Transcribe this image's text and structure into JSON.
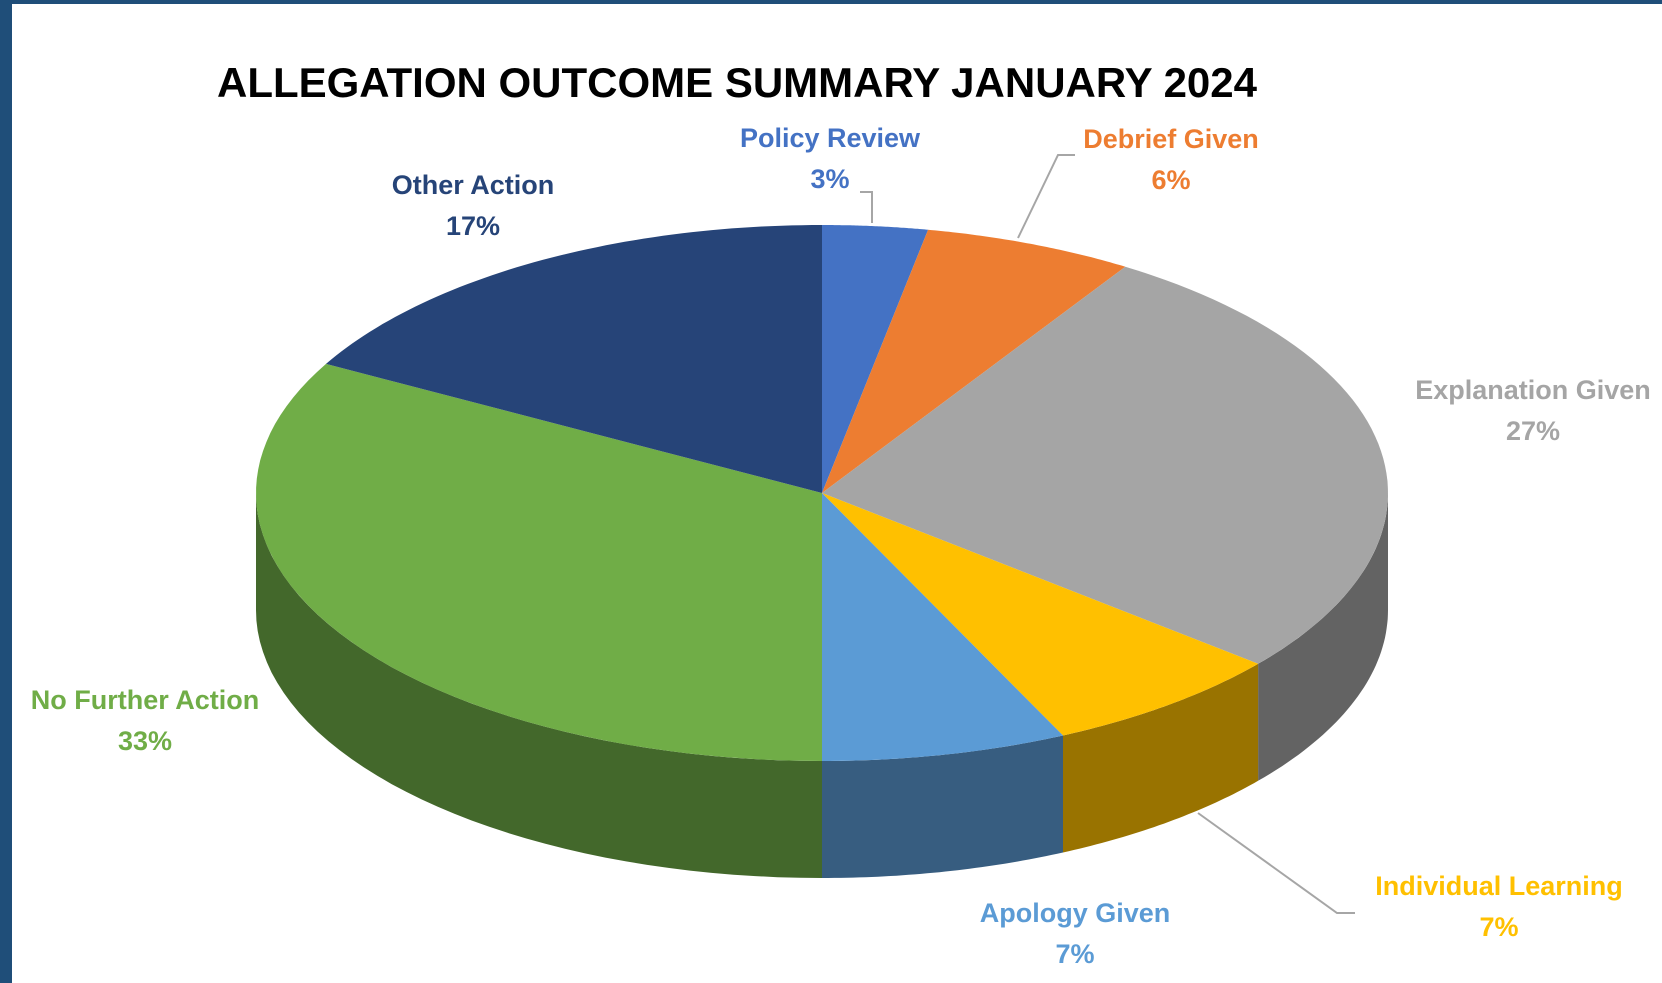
{
  "chart_data": {
    "type": "pie",
    "title": "ALLEGATION OUTCOME SUMMARY JANUARY 2024",
    "categories": [
      "Policy Review",
      "Debrief Given",
      "Explanation Given",
      "Individual Learning",
      "Apology Given",
      "No Further Action",
      "Other Action"
    ],
    "values": [
      3,
      6,
      27,
      7,
      7,
      33,
      17
    ],
    "value_labels": [
      "3%",
      "6%",
      "27%",
      "7%",
      "7%",
      "33%",
      "17%"
    ],
    "colors": [
      "#4472c4",
      "#ed7d31",
      "#a5a5a5",
      "#ffc000",
      "#5b9bd5",
      "#70ad47",
      "#264478"
    ]
  }
}
